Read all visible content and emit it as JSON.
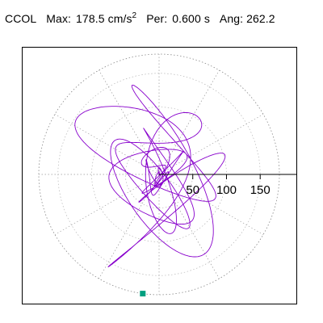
{
  "title": {
    "station": "CCOL",
    "max_label": "Max:",
    "max_value": "178.5",
    "max_unit": "cm/s",
    "max_unit_exp": "2",
    "per_label": "Per:",
    "per_value": "0.600 s",
    "ang_label": "Ang:",
    "ang_value": "262.2"
  },
  "chart_data": {
    "type": "polar-orbit",
    "title": "CCOL  Max: 178.5 cm/s2  Per: 0.600 s  Ang: 262.2",
    "max_amplitude": 178.5,
    "period_s": 0.6,
    "angle_deg": 262.2,
    "r_max": 178.5,
    "rings": [
      50,
      100,
      150
    ],
    "radial_tick_labels": [
      "50",
      "100",
      "150"
    ],
    "spokes_deg": [
      0,
      30,
      60,
      90,
      120,
      150,
      180,
      210,
      240,
      270,
      300,
      330
    ],
    "grid": true,
    "trace_color": "#8800cc",
    "marker_color": "#00a080",
    "marker_angle_deg": 262.2,
    "marker_radius": 178.5
  }
}
